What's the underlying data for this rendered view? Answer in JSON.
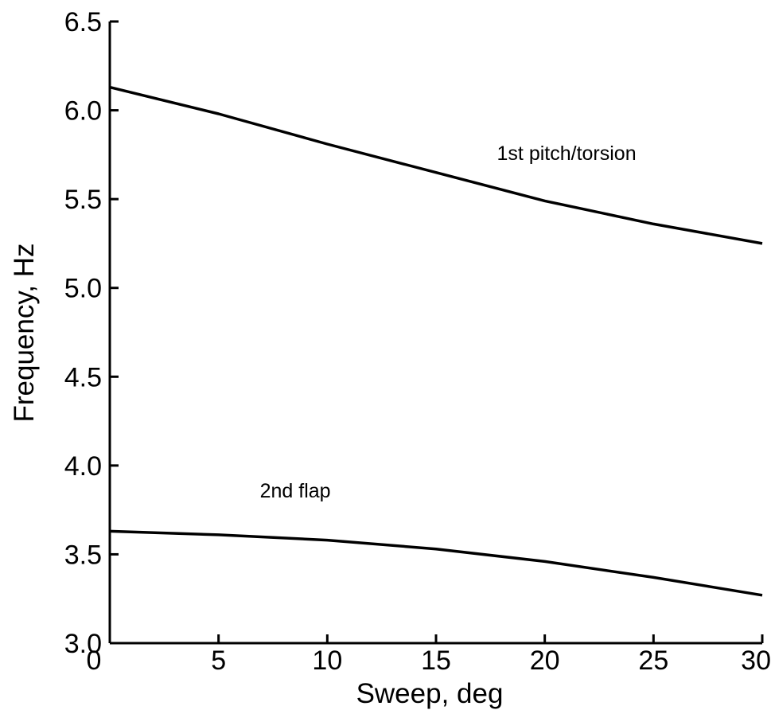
{
  "chart_data": {
    "type": "line",
    "title": "",
    "xlabel": "Sweep, deg",
    "ylabel": "Frequency, Hz",
    "xlim": [
      0,
      30
    ],
    "ylim": [
      3.0,
      6.5
    ],
    "xticks": [
      0,
      5,
      10,
      15,
      20,
      25,
      30
    ],
    "xtick_labels": [
      "0",
      "5",
      "10",
      "15",
      "20",
      "25",
      "30"
    ],
    "yticks": [
      3.0,
      3.5,
      4.0,
      4.5,
      5.0,
      5.5,
      6.0,
      6.5
    ],
    "ytick_labels": [
      "3.0",
      "3.5",
      "4.0",
      "4.5",
      "5.0",
      "5.5",
      "6.0",
      "6.5"
    ],
    "grid": false,
    "series": [
      {
        "name": "1st pitch/torsion",
        "x": [
          0,
          5,
          10,
          15,
          20,
          25,
          30
        ],
        "values": [
          6.13,
          5.98,
          5.81,
          5.65,
          5.49,
          5.36,
          5.25
        ]
      },
      {
        "name": "2nd flap",
        "x": [
          0,
          5,
          10,
          15,
          20,
          25,
          30
        ],
        "values": [
          3.63,
          3.61,
          3.58,
          3.53,
          3.46,
          3.37,
          3.27
        ]
      }
    ]
  }
}
